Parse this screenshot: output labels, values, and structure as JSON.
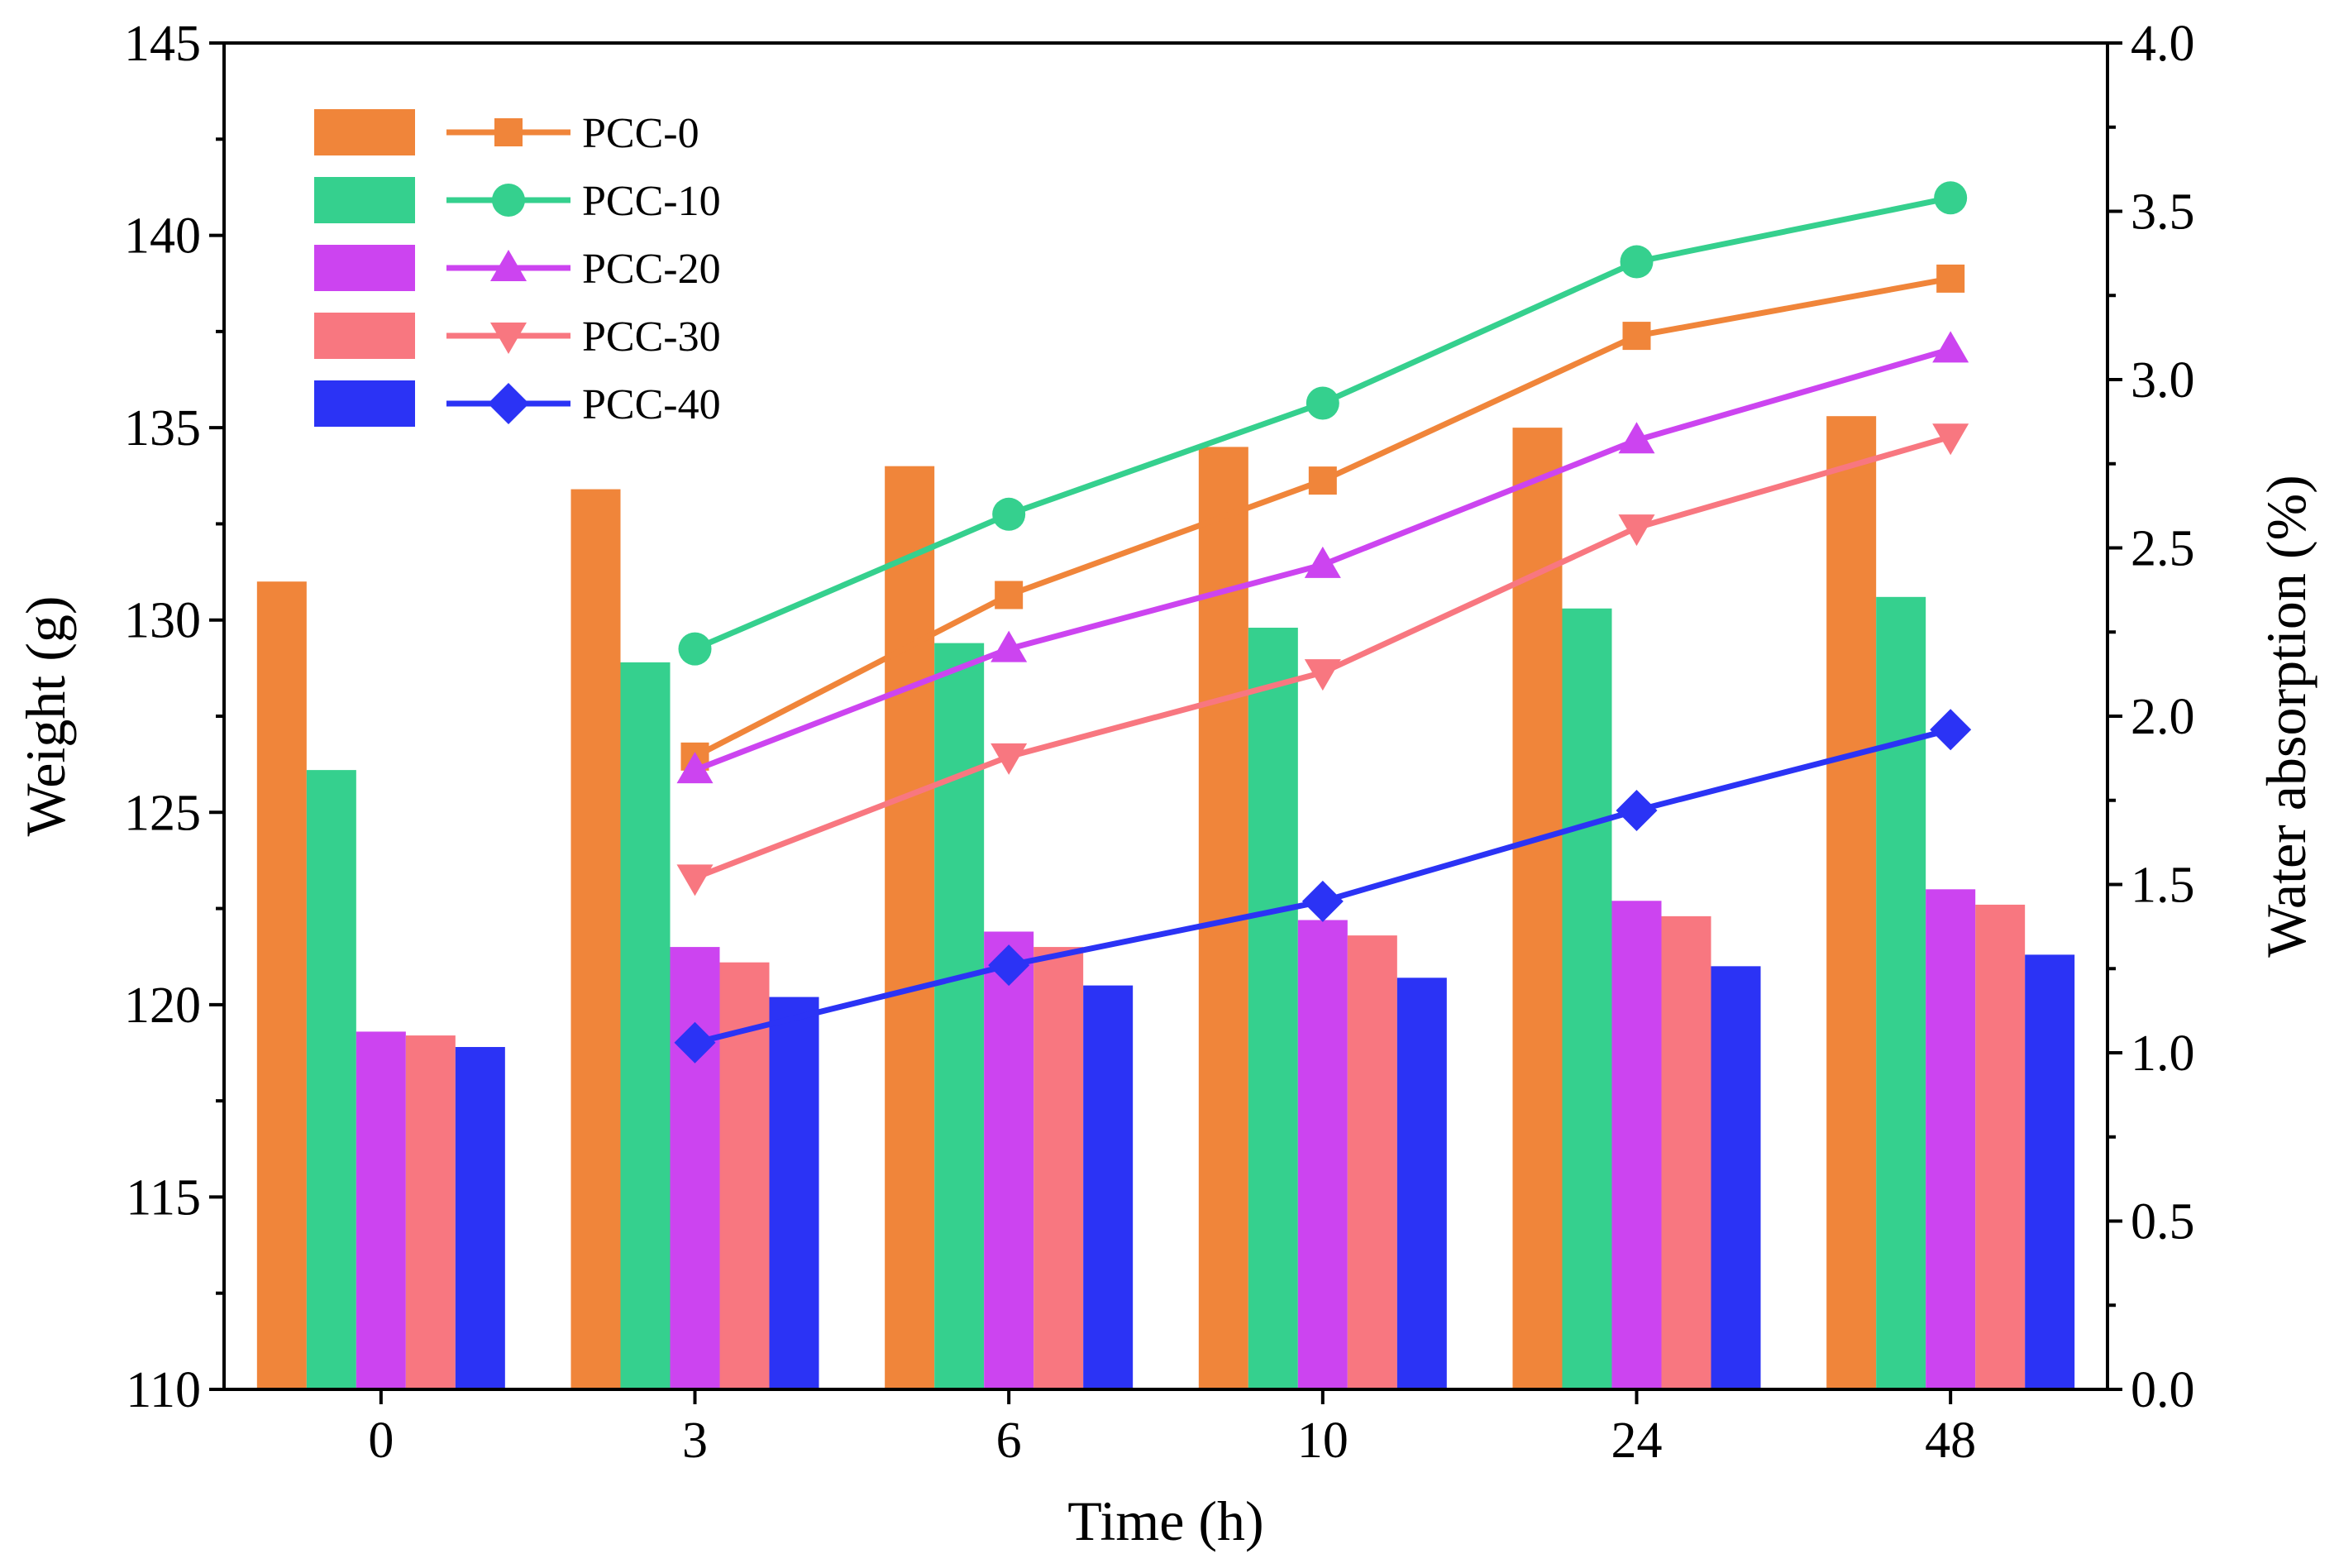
{
  "chart_data": {
    "type": "bar+line",
    "categories": [
      "0",
      "3",
      "6",
      "10",
      "24",
      "48"
    ],
    "xlabel": "Time (h)",
    "ylabel_left": "Weight (g)",
    "ylabel_right": "Water absorption (%)",
    "ylim_left": [
      110,
      145
    ],
    "ylim_right": [
      0.0,
      4.0
    ],
    "yticks_left": [
      "110",
      "115",
      "120",
      "125",
      "130",
      "135",
      "140",
      "145"
    ],
    "yticks_right": [
      "0.0",
      "0.5",
      "1.0",
      "1.5",
      "2.0",
      "2.5",
      "3.0",
      "3.5",
      "4.0"
    ],
    "legend_position": "top-left",
    "bar_series": [
      {
        "name": "PCC-0",
        "color": "#F0853A",
        "values": [
          131.0,
          133.4,
          134.0,
          134.5,
          135.0,
          135.3
        ]
      },
      {
        "name": "PCC-10",
        "color": "#35D08E",
        "values": [
          126.1,
          128.9,
          129.4,
          129.8,
          130.3,
          130.6
        ]
      },
      {
        "name": "PCC-20",
        "color": "#CC44F0",
        "values": [
          119.3,
          121.5,
          121.9,
          122.2,
          122.7,
          123.0
        ]
      },
      {
        "name": "PCC-30",
        "color": "#F87780",
        "values": [
          119.2,
          121.1,
          121.5,
          121.8,
          122.3,
          122.6
        ]
      },
      {
        "name": "PCC-40",
        "color": "#2B33F5",
        "values": [
          118.9,
          120.2,
          120.5,
          120.7,
          121.0,
          121.3
        ]
      }
    ],
    "line_series": [
      {
        "name": "PCC-0",
        "color": "#F0853A",
        "marker": "square",
        "x": [
          "3",
          "6",
          "10",
          "24",
          "48"
        ],
        "values": [
          1.88,
          2.36,
          2.7,
          3.13,
          3.3
        ]
      },
      {
        "name": "PCC-10",
        "color": "#35D08E",
        "marker": "circle",
        "x": [
          "3",
          "6",
          "10",
          "24",
          "48"
        ],
        "values": [
          2.2,
          2.6,
          2.93,
          3.35,
          3.54
        ]
      },
      {
        "name": "PCC-20",
        "color": "#CC44F0",
        "marker": "triangle-up",
        "x": [
          "3",
          "6",
          "10",
          "24",
          "48"
        ],
        "values": [
          1.84,
          2.2,
          2.45,
          2.82,
          3.09
        ]
      },
      {
        "name": "PCC-30",
        "color": "#F87780",
        "marker": "triangle-down",
        "x": [
          "3",
          "6",
          "10",
          "24",
          "48"
        ],
        "values": [
          1.52,
          1.88,
          2.13,
          2.56,
          2.83
        ]
      },
      {
        "name": "PCC-40",
        "color": "#2B33F5",
        "marker": "diamond",
        "x": [
          "3",
          "6",
          "10",
          "24",
          "48"
        ],
        "values": [
          1.03,
          1.26,
          1.45,
          1.72,
          1.96
        ]
      }
    ]
  }
}
